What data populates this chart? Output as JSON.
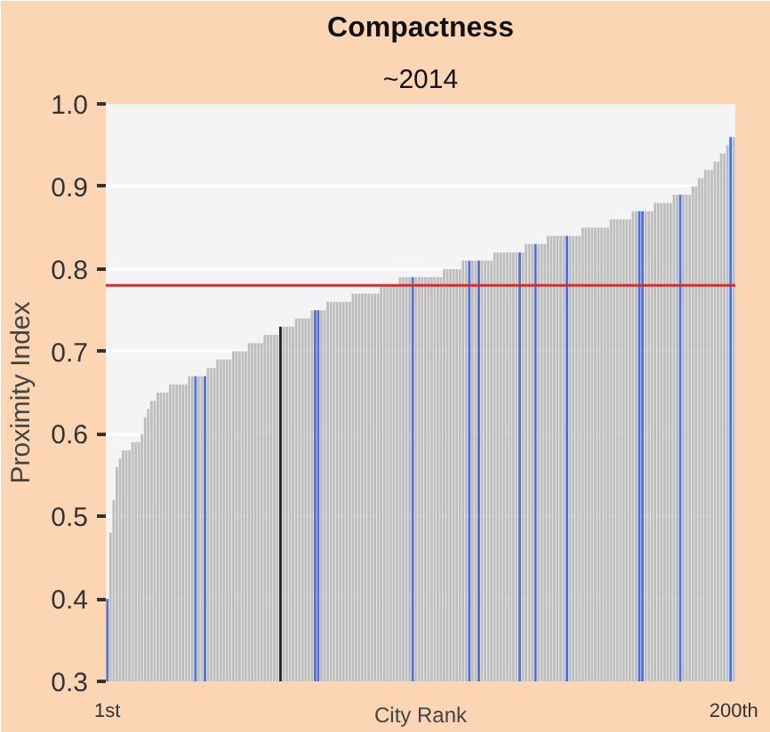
{
  "chart_data": {
    "type": "bar",
    "title": "Compactness",
    "subtitle": "~2014",
    "xlabel": "City Rank",
    "ylabel": "Proximity Index",
    "categories": [
      "1st",
      null,
      null,
      null,
      null,
      null,
      null,
      null,
      null,
      null,
      null,
      null,
      null,
      null,
      null,
      null,
      null,
      null,
      null,
      null,
      null,
      null,
      null,
      null,
      null,
      null,
      null,
      null,
      null,
      null,
      null,
      null,
      null,
      null,
      null,
      null,
      null,
      null,
      null,
      null,
      null,
      null,
      null,
      null,
      null,
      null,
      null,
      null,
      null,
      null,
      null,
      null,
      null,
      null,
      null,
      null,
      null,
      null,
      null,
      null,
      null,
      null,
      null,
      null,
      null,
      null,
      null,
      null,
      null,
      null,
      null,
      null,
      null,
      null,
      null,
      null,
      null,
      null,
      null,
      null,
      null,
      null,
      null,
      null,
      null,
      null,
      null,
      null,
      null,
      null,
      null,
      null,
      null,
      null,
      null,
      null,
      null,
      null,
      null,
      null,
      null,
      null,
      null,
      null,
      null,
      null,
      null,
      null,
      null,
      null,
      null,
      null,
      null,
      null,
      null,
      null,
      null,
      null,
      null,
      null,
      null,
      null,
      null,
      null,
      null,
      null,
      null,
      null,
      null,
      null,
      null,
      null,
      null,
      null,
      null,
      null,
      null,
      null,
      null,
      null,
      null,
      null,
      null,
      null,
      null,
      null,
      null,
      null,
      null,
      null,
      null,
      null,
      null,
      null,
      null,
      null,
      null,
      null,
      null,
      null,
      null,
      null,
      null,
      null,
      null,
      null,
      null,
      null,
      null,
      null,
      null,
      null,
      null,
      null,
      null,
      null,
      null,
      null,
      null,
      null,
      null,
      null,
      null,
      null,
      null,
      null,
      null,
      null,
      null,
      null,
      null,
      null,
      null,
      null,
      null,
      null,
      null,
      null,
      null,
      "200th"
    ],
    "values": [
      0.4,
      0.48,
      0.52,
      0.56,
      0.57,
      0.58,
      0.58,
      0.58,
      0.59,
      0.59,
      0.59,
      0.6,
      0.62,
      0.63,
      0.64,
      0.64,
      0.65,
      0.65,
      0.65,
      0.65,
      0.66,
      0.66,
      0.66,
      0.66,
      0.66,
      0.66,
      0.67,
      0.67,
      0.67,
      0.67,
      0.67,
      0.67,
      0.68,
      0.68,
      0.68,
      0.69,
      0.69,
      0.69,
      0.69,
      0.69,
      0.7,
      0.7,
      0.7,
      0.7,
      0.7,
      0.71,
      0.71,
      0.71,
      0.71,
      0.71,
      0.72,
      0.72,
      0.72,
      0.72,
      0.72,
      0.73,
      0.73,
      0.73,
      0.73,
      0.73,
      0.74,
      0.74,
      0.74,
      0.74,
      0.74,
      0.75,
      0.75,
      0.75,
      0.75,
      0.75,
      0.76,
      0.76,
      0.76,
      0.76,
      0.76,
      0.76,
      0.76,
      0.76,
      0.77,
      0.77,
      0.77,
      0.77,
      0.77,
      0.77,
      0.77,
      0.77,
      0.77,
      0.78,
      0.78,
      0.78,
      0.78,
      0.78,
      0.78,
      0.79,
      0.79,
      0.79,
      0.79,
      0.79,
      0.79,
      0.79,
      0.79,
      0.79,
      0.79,
      0.79,
      0.79,
      0.79,
      0.79,
      0.8,
      0.8,
      0.8,
      0.8,
      0.8,
      0.8,
      0.81,
      0.81,
      0.81,
      0.81,
      0.81,
      0.81,
      0.81,
      0.81,
      0.81,
      0.81,
      0.82,
      0.82,
      0.82,
      0.82,
      0.82,
      0.82,
      0.82,
      0.82,
      0.82,
      0.82,
      0.83,
      0.83,
      0.83,
      0.83,
      0.83,
      0.83,
      0.83,
      0.84,
      0.84,
      0.84,
      0.84,
      0.84,
      0.84,
      0.84,
      0.84,
      0.84,
      0.84,
      0.84,
      0.85,
      0.85,
      0.85,
      0.85,
      0.85,
      0.85,
      0.85,
      0.85,
      0.85,
      0.86,
      0.86,
      0.86,
      0.86,
      0.86,
      0.86,
      0.86,
      0.87,
      0.87,
      0.87,
      0.87,
      0.87,
      0.87,
      0.87,
      0.88,
      0.88,
      0.88,
      0.88,
      0.88,
      0.88,
      0.89,
      0.89,
      0.89,
      0.89,
      0.89,
      0.89,
      0.9,
      0.9,
      0.91,
      0.91,
      0.92,
      0.92,
      0.92,
      0.93,
      0.93,
      0.94,
      0.94,
      0.95,
      0.96,
      0.96
    ],
    "colors": [
      "#4f6fe0",
      "#bebebe",
      "#bebebe",
      "#bebebe",
      "#bebebe",
      "#bebebe",
      "#bebebe",
      "#bebebe",
      "#bebebe",
      "#bebebe",
      "#bebebe",
      "#bebebe",
      "#bebebe",
      "#bebebe",
      "#bebebe",
      "#bebebe",
      "#bebebe",
      "#bebebe",
      "#bebebe",
      "#bebebe",
      "#bebebe",
      "#bebebe",
      "#bebebe",
      "#bebebe",
      "#bebebe",
      "#bebebe",
      "#bebebe",
      "#bebebe",
      "#4f6fe0",
      "#bebebe",
      "#bebebe",
      "#4f6fe0",
      "#bebebe",
      "#bebebe",
      "#bebebe",
      "#bebebe",
      "#bebebe",
      "#bebebe",
      "#bebebe",
      "#bebebe",
      "#bebebe",
      "#bebebe",
      "#bebebe",
      "#bebebe",
      "#bebebe",
      "#bebebe",
      "#bebebe",
      "#bebebe",
      "#bebebe",
      "#bebebe",
      "#bebebe",
      "#bebebe",
      "#bebebe",
      "#bebebe",
      "#bebebe",
      "#222222",
      "#bebebe",
      "#bebebe",
      "#bebebe",
      "#bebebe",
      "#bebebe",
      "#bebebe",
      "#bebebe",
      "#bebebe",
      "#bebebe",
      "#bebebe",
      "#4f6fe0",
      "#4f6fe0",
      "#bebebe",
      "#bebebe",
      "#bebebe",
      "#bebebe",
      "#bebebe",
      "#bebebe",
      "#bebebe",
      "#bebebe",
      "#bebebe",
      "#bebebe",
      "#bebebe",
      "#bebebe",
      "#bebebe",
      "#bebebe",
      "#bebebe",
      "#bebebe",
      "#bebebe",
      "#bebebe",
      "#bebebe",
      "#bebebe",
      "#bebebe",
      "#bebebe",
      "#bebebe",
      "#bebebe",
      "#bebebe",
      "#bebebe",
      "#bebebe",
      "#bebebe",
      "#bebebe",
      "#4f6fe0",
      "#bebebe",
      "#bebebe",
      "#bebebe",
      "#bebebe",
      "#bebebe",
      "#bebebe",
      "#bebebe",
      "#bebebe",
      "#bebebe",
      "#bebebe",
      "#bebebe",
      "#bebebe",
      "#bebebe",
      "#bebebe",
      "#bebebe",
      "#bebebe",
      "#bebebe",
      "#4f6fe0",
      "#bebebe",
      "#bebebe",
      "#4f6fe0",
      "#bebebe",
      "#bebebe",
      "#bebebe",
      "#bebebe",
      "#bebebe",
      "#bebebe",
      "#bebebe",
      "#bebebe",
      "#bebebe",
      "#bebebe",
      "#bebebe",
      "#bebebe",
      "#4f6fe0",
      "#bebebe",
      "#bebebe",
      "#bebebe",
      "#bebebe",
      "#4f6fe0",
      "#bebebe",
      "#bebebe",
      "#bebebe",
      "#bebebe",
      "#bebebe",
      "#bebebe",
      "#bebebe",
      "#bebebe",
      "#bebebe",
      "#4f6fe0",
      "#bebebe",
      "#bebebe",
      "#bebebe",
      "#bebebe",
      "#bebebe",
      "#bebebe",
      "#bebebe",
      "#bebebe",
      "#bebebe",
      "#bebebe",
      "#bebebe",
      "#bebebe",
      "#bebebe",
      "#bebebe",
      "#bebebe",
      "#bebebe",
      "#bebebe",
      "#bebebe",
      "#bebebe",
      "#bebebe",
      "#bebebe",
      "#bebebe",
      "#4f6fe0",
      "#4f6fe0",
      "#bebebe",
      "#bebebe",
      "#bebebe",
      "#bebebe",
      "#bebebe",
      "#bebebe",
      "#bebebe",
      "#bebebe",
      "#bebebe",
      "#bebebe",
      "#bebebe",
      "#4f6fe0",
      "#bebebe",
      "#bebebe",
      "#bebebe",
      "#bebebe",
      "#bebebe",
      "#bebebe",
      "#bebebe",
      "#bebebe",
      "#bebebe",
      "#bebebe",
      "#bebebe",
      "#bebebe",
      "#bebebe",
      "#bebebe",
      "#bebebe",
      "#4f6fe0",
      "#bebebe"
    ],
    "ylim": [
      0.3,
      1.0
    ],
    "yticks": [
      {
        "value": 0.3,
        "label": "0.3"
      },
      {
        "value": 0.4,
        "label": "0.4"
      },
      {
        "value": 0.5,
        "label": "0.5"
      },
      {
        "value": 0.6,
        "label": "0.6"
      },
      {
        "value": 0.7,
        "label": "0.7"
      },
      {
        "value": 0.8,
        "label": "0.8"
      },
      {
        "value": 0.9,
        "label": "0.9"
      },
      {
        "value": 1.0,
        "label": "1.0"
      }
    ],
    "ref_lines": [
      {
        "axis": "y",
        "value": 0.78,
        "color": "#d03030"
      }
    ],
    "grid": "y"
  }
}
